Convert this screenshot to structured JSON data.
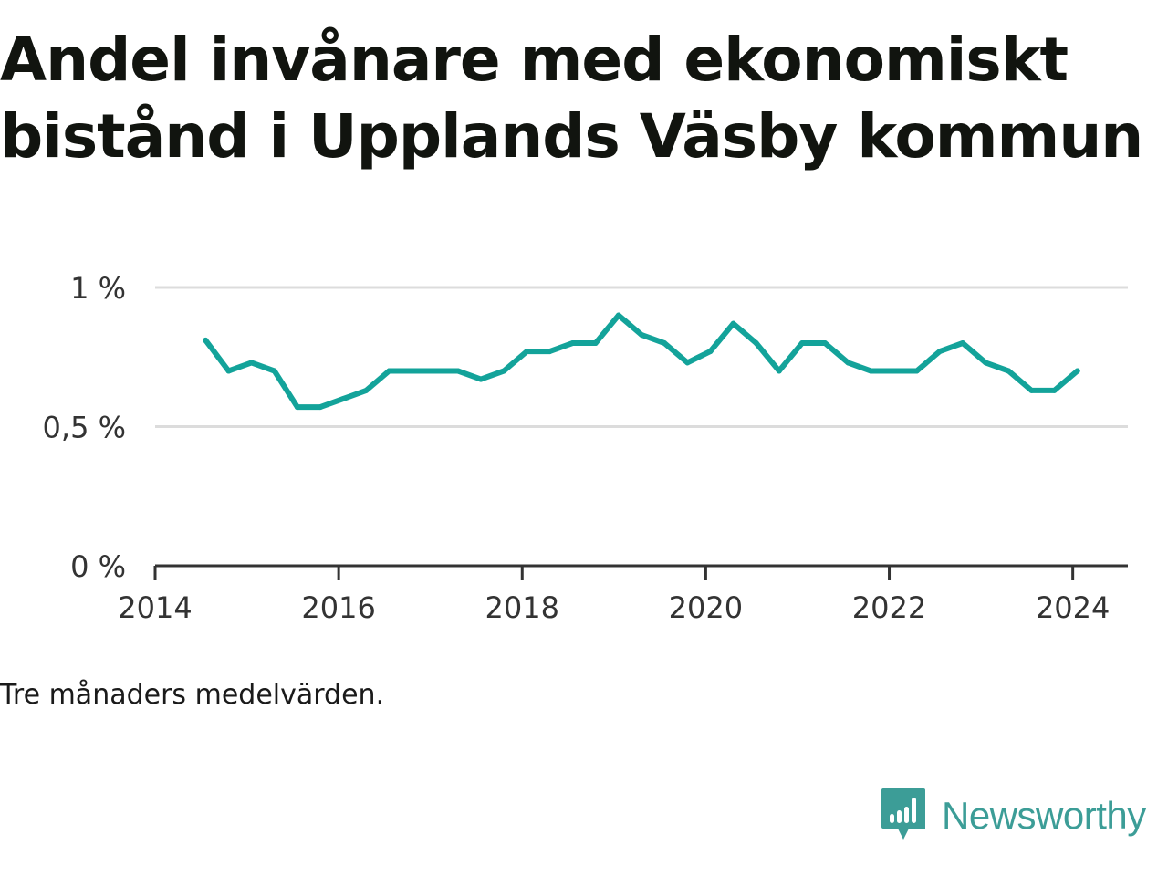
{
  "title_lines": [
    "Andel invånare med ekonomiskt",
    "bistånd i Upplands Väsby kommun"
  ],
  "caption": "Tre månaders medelvärden.",
  "brand": {
    "name": "Newsworthy",
    "icon": "bar-chart-speech-bubble-icon",
    "color": "#3c9d97"
  },
  "chart_data": {
    "type": "line",
    "title": "Andel invånare med ekonomiskt bistånd i Upplands Väsby kommun",
    "xlabel": "",
    "ylabel": "",
    "ylim": [
      0,
      1
    ],
    "xlim": [
      2014,
      2024.6
    ],
    "grid": true,
    "line_color": "#13a39a",
    "yticks": [
      {
        "value": 0,
        "label": "0 %"
      },
      {
        "value": 0.5,
        "label": "0,5 %"
      },
      {
        "value": 1,
        "label": "1 %"
      }
    ],
    "xticks": [
      {
        "value": 2014,
        "label": "2014"
      },
      {
        "value": 2016,
        "label": "2016"
      },
      {
        "value": 2018,
        "label": "2018"
      },
      {
        "value": 2020,
        "label": "2020"
      },
      {
        "value": 2022,
        "label": "2022"
      },
      {
        "value": 2024,
        "label": "2024"
      }
    ],
    "series": [
      {
        "x": [
          2014.55,
          2014.8,
          2015.05,
          2015.3,
          2015.55,
          2015.8,
          2016.05,
          2016.3,
          2016.55,
          2016.8,
          2017.05,
          2017.3,
          2017.55,
          2017.8,
          2018.05,
          2018.3,
          2018.55,
          2018.8,
          2019.05,
          2019.3,
          2019.55,
          2019.8,
          2020.05,
          2020.3,
          2020.55,
          2020.8,
          2021.05,
          2021.3,
          2021.55,
          2021.8,
          2022.05,
          2022.3,
          2022.55,
          2022.8,
          2023.05,
          2023.3,
          2023.55,
          2023.8,
          2024.05
        ],
        "y": [
          0.81,
          0.7,
          0.73,
          0.7,
          0.57,
          0.57,
          0.6,
          0.63,
          0.7,
          0.7,
          0.7,
          0.7,
          0.67,
          0.7,
          0.77,
          0.77,
          0.8,
          0.8,
          0.9,
          0.83,
          0.8,
          0.73,
          0.77,
          0.87,
          0.8,
          0.7,
          0.8,
          0.8,
          0.73,
          0.7,
          0.7,
          0.7,
          0.77,
          0.8,
          0.73,
          0.7,
          0.63,
          0.63,
          0.7
        ]
      }
    ]
  }
}
